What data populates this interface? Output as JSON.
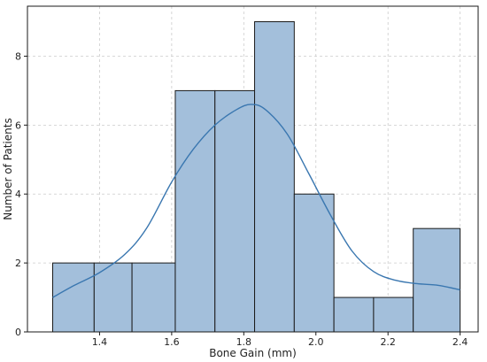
{
  "chart_data": {
    "type": "bar",
    "subtype": "histogram-with-kde",
    "title": "",
    "xlabel": "Bone Gain (mm)",
    "ylabel": "Number of Patients",
    "xlim": [
      1.2,
      2.45
    ],
    "ylim": [
      0,
      9.45
    ],
    "grid": true,
    "x_ticks": [
      1.4,
      1.6,
      1.8,
      2.0,
      2.2,
      2.4
    ],
    "x_tick_labels": [
      "1.4",
      "1.6",
      "1.8",
      "2.0",
      "2.2",
      "2.4"
    ],
    "y_ticks": [
      0,
      2,
      4,
      6,
      8
    ],
    "y_tick_labels": [
      "0",
      "2",
      "4",
      "6",
      "8"
    ],
    "bins": [
      {
        "x0": 1.27,
        "x1": 1.385,
        "count": 2
      },
      {
        "x0": 1.385,
        "x1": 1.49,
        "count": 2
      },
      {
        "x0": 1.49,
        "x1": 1.61,
        "count": 2
      },
      {
        "x0": 1.61,
        "x1": 1.72,
        "count": 7
      },
      {
        "x0": 1.72,
        "x1": 1.83,
        "count": 7
      },
      {
        "x0": 1.83,
        "x1": 1.94,
        "count": 9
      },
      {
        "x0": 1.94,
        "x1": 2.05,
        "count": 4
      },
      {
        "x0": 2.05,
        "x1": 2.16,
        "count": 1
      },
      {
        "x0": 2.16,
        "x1": 2.27,
        "count": 1
      },
      {
        "x0": 2.27,
        "x1": 2.4,
        "count": 3
      }
    ],
    "kde": {
      "x": [
        1.27,
        1.33,
        1.4,
        1.47,
        1.53,
        1.6,
        1.66,
        1.72,
        1.78,
        1.82,
        1.86,
        1.92,
        1.98,
        2.04,
        2.1,
        2.16,
        2.22,
        2.28,
        2.34,
        2.4
      ],
      "y": [
        1.0,
        1.35,
        1.72,
        2.25,
        3.0,
        4.35,
        5.3,
        6.0,
        6.45,
        6.6,
        6.45,
        5.75,
        4.6,
        3.4,
        2.35,
        1.75,
        1.5,
        1.4,
        1.35,
        1.22
      ]
    },
    "colors": {
      "bar_fill": "#a3bfdb",
      "bar_edge": "#1a1a1a",
      "kde_line": "#3a77b0",
      "grid": "#cccccc"
    }
  }
}
